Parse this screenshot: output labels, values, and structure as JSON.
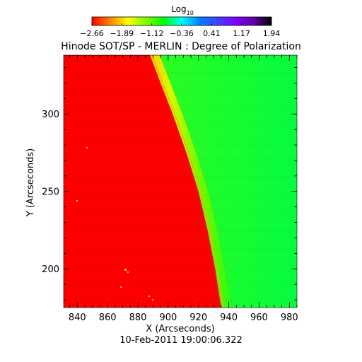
{
  "colorbar": {
    "label_main": "Log",
    "label_sub": "10",
    "ticks": [
      "−2.66",
      "−1.89",
      "−1.12",
      "−0.36",
      "0.41",
      "1.17",
      "1.94"
    ],
    "stops": [
      "#ff0000",
      "#ff8000",
      "#ffff00",
      "#80ff00",
      "#00ff00",
      "#00ffff",
      "#0080ff",
      "#4040ff",
      "#8000ff",
      "#6000a0",
      "#000000"
    ]
  },
  "chart_data": {
    "type": "heatmap",
    "title": "Hinode SOT/SP - MERLIN : Degree of Polarization",
    "xlabel": "X (Arcseconds)",
    "ylabel": "Y (Arcseconds)",
    "xlim": [
      831,
      985
    ],
    "ylim": [
      175,
      338
    ],
    "x_ticks": [
      840,
      860,
      880,
      900,
      920,
      940,
      960,
      980
    ],
    "y_ticks": [
      200,
      250,
      300
    ],
    "limb_edge": [
      {
        "x": 888,
        "y": 338
      },
      {
        "x": 895,
        "y": 320
      },
      {
        "x": 903,
        "y": 300
      },
      {
        "x": 912,
        "y": 275
      },
      {
        "x": 920,
        "y": 250
      },
      {
        "x": 926,
        "y": 225
      },
      {
        "x": 931,
        "y": 200
      },
      {
        "x": 935,
        "y": 175
      }
    ],
    "timestamp": "10-Feb-2011 19:00:06.322"
  }
}
